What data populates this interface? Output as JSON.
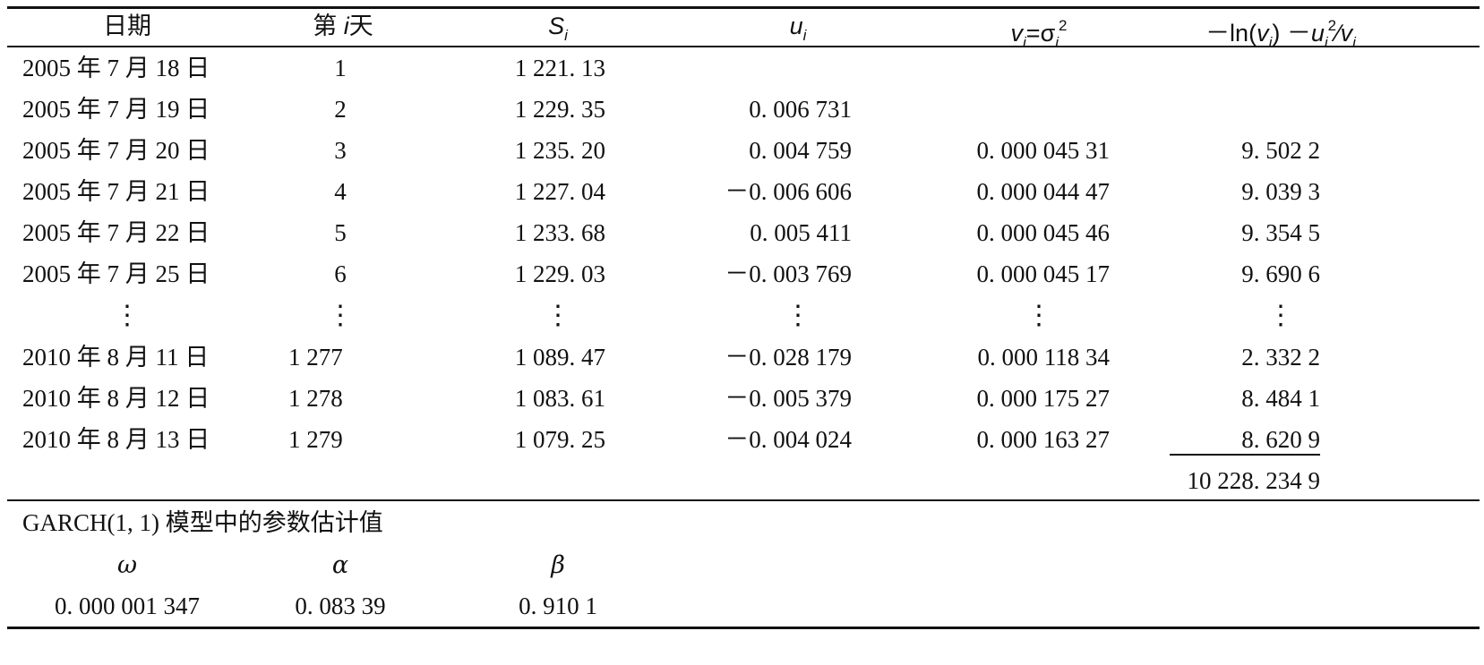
{
  "header": {
    "date": "日期",
    "day_prefix": "第",
    "day_var": "i",
    "day_suffix": "天",
    "s_var": "S",
    "s_sub": "i",
    "u_var": "u",
    "u_sub": "i",
    "v_var": "v",
    "v_sub": "i",
    "v_eq": "=σ",
    "v_eq_sub": "i",
    "v_eq_sup": "2",
    "ll_pre": "－ln(",
    "ll_v": "v",
    "ll_v_sub": "i",
    "ll_mid": ") －",
    "ll_u": "u",
    "ll_u_sub": "i",
    "ll_u_sup": "2",
    "ll_div": "∕",
    "ll_v2": "v",
    "ll_v2_sub": "i"
  },
  "rows": [
    {
      "date": "2005 年 7 月 18 日",
      "day": "1",
      "s": "1 221. 13",
      "u": "",
      "v": "",
      "ll": ""
    },
    {
      "date": "2005 年 7 月 19 日",
      "day": "2",
      "s": "1 229. 35",
      "u": "0. 006 731",
      "v": "",
      "ll": ""
    },
    {
      "date": "2005 年 7 月 20 日",
      "day": "3",
      "s": "1 235. 20",
      "u": "0. 004 759",
      "v": "0. 000 045 31",
      "ll": "9. 502 2"
    },
    {
      "date": "2005 年 7 月 21 日",
      "day": "4",
      "s": "1 227. 04",
      "u": "－0. 006 606",
      "v": "0. 000 044 47",
      "ll": "9. 039 3"
    },
    {
      "date": "2005 年 7 月 22 日",
      "day": "5",
      "s": "1 233. 68",
      "u": "0. 005 411",
      "v": "0. 000 045 46",
      "ll": "9. 354 5"
    },
    {
      "date": "2005 年 7 月 25 日",
      "day": "6",
      "s": "1 229. 03",
      "u": "－0. 003 769",
      "v": "0. 000 045 17",
      "ll": "9. 690 6"
    },
    {
      "date": "2010 年 8 月 11 日",
      "day": "1 277",
      "s": "1 089. 47",
      "u": "－0. 028 179",
      "v": "0. 000 118 34",
      "ll": "2. 332 2"
    },
    {
      "date": "2010 年 8 月 12 日",
      "day": "1 278",
      "s": "1 083. 61",
      "u": "－0. 005 379",
      "v": "0. 000 175 27",
      "ll": "8. 484 1"
    },
    {
      "date": "2010 年 8 月 13 日",
      "day": "1 279",
      "s": "1 079. 25",
      "u": "－0. 004 024",
      "v": "0. 000 163 27",
      "ll": "8. 620 9"
    }
  ],
  "ellipsis": "⋮",
  "total": "10 228. 234 9",
  "params": {
    "title": "GARCH(1, 1) 模型中的参数估计值",
    "omega_label": "ω",
    "alpha_label": "α",
    "beta_label": "β",
    "omega_value": "0. 000 001 347",
    "alpha_value": "0. 083 39",
    "beta_value": "0. 910 1"
  }
}
